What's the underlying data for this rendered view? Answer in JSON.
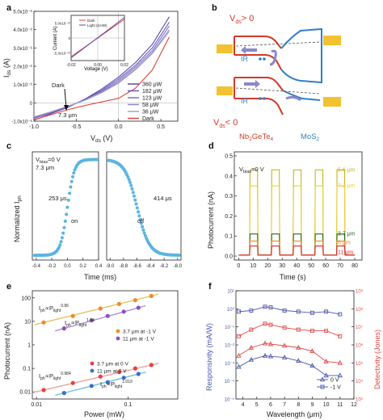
{
  "panels": {
    "a": {
      "label": "a"
    },
    "b": {
      "label": "b"
    },
    "c": {
      "label": "c"
    },
    "d": {
      "label": "d"
    },
    "e": {
      "label": "e"
    },
    "f": {
      "label": "f"
    }
  },
  "schematic": {
    "vds_pos": "V",
    "vds_pos_sub": "ds",
    "vds_pos_rel": "> 0",
    "vds_neg": "V",
    "vds_neg_sub": "ds",
    "vds_neg_rel": "< 0",
    "ir_top": "IR",
    "ir_bottom": "IR",
    "nb_label": "Nb",
    "nb_sub1": "2",
    "nb_mid": "GeTe",
    "nb_sub2": "4",
    "mos_label": "MoS",
    "mos_sub": "2",
    "colors": {
      "red": "#d23a2a",
      "blue": "#2f7fc4",
      "gold": "#f2c230",
      "arrow": "#8a88cc"
    }
  },
  "chart_data": [
    {
      "panel": "a",
      "type": "line",
      "xlabel": "V",
      "xlabel_sub": "ds",
      "xlabel_unit": " (V)",
      "ylabel": "I",
      "ylabel_sub": "ds",
      "ylabel_unit": " (A)",
      "xlim": [
        -1.0,
        0.7
      ],
      "ylim": [
        -1e-06,
        5e-06
      ],
      "xticks": [
        -1.0,
        -0.5,
        0.0,
        0.5
      ],
      "xtick_labels": [
        "-1.0",
        "-0.5",
        "0.0",
        "0.5"
      ],
      "yticks": [
        -1e-06,
        0,
        1e-06,
        2e-06,
        3e-06,
        4e-06,
        5e-06
      ],
      "ytick_labels": [
        "-1.0x10⁻⁶",
        "0",
        "1.0x10⁻⁶",
        "2.0x10⁻⁶",
        "3.0x10⁻⁶",
        "4.0x10⁻⁶",
        "5.0x10⁻⁶"
      ],
      "legend": [
        "360 μW",
        "182 μW",
        "123 μW",
        "58 μW",
        "36 μW",
        "Dark"
      ],
      "legend_colors": [
        "#5c4aa8",
        "#6a5bb5",
        "#7c70c0",
        "#9088c8",
        "#a89ed0",
        "#e0443a"
      ],
      "arrow_label": "Dark",
      "thickness_label": "7.3 μm",
      "series": [
        {
          "name": "360 μW",
          "x": [
            -1.0,
            -0.8,
            -0.6,
            -0.4,
            -0.2,
            0.0,
            0.2,
            0.4,
            0.6
          ],
          "y": [
            -9.5e-07,
            -6e-07,
            -2.5e-07,
            2e-07,
            7.5e-07,
            1.4e-06,
            2.2e-06,
            3.2e-06,
            4.7e-06
          ]
        },
        {
          "name": "182 μW",
          "x": [
            -1.0,
            -0.8,
            -0.6,
            -0.4,
            -0.2,
            0.0,
            0.2,
            0.4,
            0.6
          ],
          "y": [
            -8.5e-07,
            -5.5e-07,
            -2.2e-07,
            1.8e-07,
            6.8e-07,
            1.3e-06,
            2.05e-06,
            3e-06,
            4.4e-06
          ]
        },
        {
          "name": "123 μW",
          "x": [
            -1.0,
            -0.8,
            -0.6,
            -0.4,
            -0.2,
            0.0,
            0.2,
            0.4,
            0.6
          ],
          "y": [
            -8e-07,
            -5.2e-07,
            -2e-07,
            1.6e-07,
            6.2e-07,
            1.2e-06,
            1.95e-06,
            2.85e-06,
            4.2e-06
          ]
        },
        {
          "name": "58 μW",
          "x": [
            -1.0,
            -0.8,
            -0.6,
            -0.4,
            -0.2,
            0.0,
            0.2,
            0.4,
            0.6
          ],
          "y": [
            -7.8e-07,
            -5e-07,
            -1.9e-07,
            1.4e-07,
            5.8e-07,
            1.12e-06,
            1.85e-06,
            2.75e-06,
            4e-06
          ]
        },
        {
          "name": "36 μW",
          "x": [
            -1.0,
            -0.8,
            -0.6,
            -0.4,
            -0.2,
            0.0,
            0.2,
            0.4,
            0.6
          ],
          "y": [
            -7.6e-07,
            -4.9e-07,
            -1.8e-07,
            1.3e-07,
            5.5e-07,
            1.08e-06,
            1.8e-06,
            2.7e-06,
            3.9e-06
          ]
        },
        {
          "name": "Dark",
          "x": [
            -1.0,
            -0.8,
            -0.6,
            -0.4,
            -0.2,
            0.0,
            0.2,
            0.4,
            0.6
          ],
          "y": [
            -9.2e-07,
            -6.5e-07,
            -3.8e-07,
            -1.5e-07,
            5e-08,
            2.5e-07,
            8e-07,
            1.8e-06,
            3.6e-06
          ]
        }
      ],
      "inset": {
        "xlabel": "Voltage (V)",
        "ylabel": "Current (A)",
        "xlim": [
          -0.02,
          0.02
        ],
        "ylim": [
          -7.5e-10,
          7.5e-10
        ],
        "xtick_labels": [
          "-0.02",
          "0.00",
          "0.02"
        ],
        "ytick_labels": [
          "5.0x10⁻¹⁰",
          "0",
          "-5.0x10⁻¹⁰"
        ],
        "legend": [
          "Dark",
          "Light (1mW)"
        ],
        "legend_colors": [
          "#e0443a",
          "#5c4aa8"
        ],
        "series": [
          {
            "name": "Dark",
            "x": [
              -0.02,
              0.02
            ],
            "y": [
              -6.2e-10,
              6.2e-10
            ]
          },
          {
            "name": "Light (1mW)",
            "x": [
              -0.02,
              0.02
            ],
            "y": [
              -6.6e-10,
              6.8e-10
            ]
          }
        ]
      }
    },
    {
      "panel": "c",
      "type": "scatter",
      "ylabel": "Normalized I",
      "ylabel_sub": "ph",
      "xlabel": "Time (ms)",
      "bias_label": "V",
      "bias_sub": "bias",
      "bias_value": "=0 V",
      "thickness_label": "7.3 μm",
      "rise_label": "253 μs",
      "rise_word": "on",
      "fall_label": "414 μs",
      "fall_word": "off",
      "left_xticks": [
        "-0.4",
        "-0.2",
        "0.0",
        "0.2",
        "0.4"
      ],
      "right_xticks": [
        "-9.0",
        "-8.8",
        "-8.6",
        "-8.4",
        "-8.2",
        "-8.0"
      ],
      "rise": {
        "xlim": [
          -0.45,
          0.4
        ],
        "t0": 0.0,
        "tau_ms": 0.1,
        "x_start": -0.42,
        "x_end": 0.38,
        "n": 60
      },
      "fall": {
        "xlim": [
          -9.05,
          -7.95
        ],
        "t0": -8.85,
        "tau_ms": 0.18,
        "x_start": -9.02,
        "x_end": -7.98,
        "n": 70
      },
      "color": "#5bb4e0"
    },
    {
      "panel": "d",
      "type": "line",
      "xlabel": "Time (s)",
      "ylabel": "Photocurrent (nA)",
      "bias_label": "V",
      "bias_sub": "bias",
      "bias_value": "=0 V",
      "xlim": [
        -3,
        85
      ],
      "ylim": [
        -0.02,
        0.52
      ],
      "xticks": [
        0,
        10,
        20,
        30,
        40,
        50,
        60,
        70,
        80
      ],
      "yticks": [
        0.0,
        0.1,
        0.2,
        0.3,
        0.4,
        0.5
      ],
      "ytick_labels": [
        "0.0",
        "0.1",
        "0.2",
        "0.3",
        "0.4",
        "0.5"
      ],
      "pulses_on": [
        7.5,
        22.5,
        37.5,
        52.5,
        67.5
      ],
      "pulse_width": 5.5,
      "series": [
        {
          "name": "5.6 μm",
          "level": 0.43,
          "color": "#c9b41a"
        },
        {
          "name": "7.3 μm",
          "level": 0.35,
          "color": "#e8d040"
        },
        {
          "name": "3.7 μm",
          "level": 0.11,
          "color": "#2a6a22"
        },
        {
          "name": "8 μm",
          "level": 0.075,
          "color": "#e88a2a"
        },
        {
          "name": "11 μm",
          "level": 0.05,
          "color": "#d83030"
        }
      ],
      "labels": [
        "5.6 μm",
        "7.3 μm",
        "3.7 μm",
        "8 μm",
        "11 μm"
      ]
    },
    {
      "panel": "e",
      "type": "scatter",
      "xlabel": "Power (mW)",
      "ylabel": "Photocurrent (nA)",
      "xscale": "log",
      "yscale": "log",
      "xlim": [
        0.009,
        0.35
      ],
      "ylim": [
        0.005,
        200
      ],
      "xticks": [
        0.01,
        0.1
      ],
      "xtick_labels": [
        "0.01",
        "0.1"
      ],
      "yticks": [
        0.01,
        0.1,
        1,
        10,
        100
      ],
      "ytick_labels": [
        "0.01",
        "0.1",
        "1",
        "10",
        "100"
      ],
      "legend_top": [
        "3.7  μm at -1 V",
        "11  μm at -1 V"
      ],
      "legend_bottom": [
        "3.7  μm at 0 V",
        "11  μm at 0 V"
      ],
      "fit_labels": [
        {
          "base": "I",
          "sub": "ph",
          "mid": "∝P",
          "sub2": "light",
          "exp": "0.96"
        },
        {
          "base": "I",
          "sub": "ph",
          "mid": "∝P",
          "sub2": "light",
          "exp": "1.04"
        },
        {
          "base": "I",
          "sub": "ph",
          "mid": "∝P",
          "sub2": "light",
          "exp": "0.984"
        },
        {
          "base": "I",
          "sub": "ph",
          "mid": "∝P",
          "sub2": "light",
          "exp": "1.019"
        }
      ],
      "series": [
        {
          "name": "3.7 μm at -1 V",
          "color": "#f08a2a",
          "fit": "#e8c060",
          "x": [
            0.012,
            0.025,
            0.05,
            0.08,
            0.12,
            0.18
          ],
          "y": [
            9,
            17,
            35,
            55,
            80,
            120
          ]
        },
        {
          "name": "11 μm at -1 V",
          "color": "#8a50c0",
          "fit": "#b090d8",
          "x": [
            0.02,
            0.04,
            0.06,
            0.09,
            0.13
          ],
          "y": [
            5,
            11,
            17,
            26,
            38
          ]
        },
        {
          "name": "3.7 μm at 0 V",
          "color": "#e84040",
          "fit": "#f0a0a0",
          "x": [
            0.012,
            0.025,
            0.05,
            0.08,
            0.12,
            0.18
          ],
          "y": [
            0.012,
            0.024,
            0.045,
            0.07,
            0.1,
            0.14
          ]
        },
        {
          "name": "11 μm at 0 V",
          "color": "#3a70c8",
          "fit": "#70c0e0",
          "x": [
            0.02,
            0.04,
            0.06,
            0.09,
            0.13
          ],
          "y": [
            0.009,
            0.018,
            0.026,
            0.04,
            0.058
          ]
        }
      ]
    },
    {
      "panel": "f",
      "type": "line",
      "xlabel": "Wavelength (μm)",
      "ylabel_left": "Responsivity (mA/W)",
      "ylabel_right": "Detectivity (Jones)",
      "yscale": "log",
      "xlim": [
        3.5,
        12
      ],
      "xticks": [
        4,
        5,
        6,
        7,
        8,
        9,
        10,
        11,
        12
      ],
      "ylim_left_exp": [
        -5,
        1
      ],
      "ylim_right_exp": [
        3,
        9
      ],
      "left_ytick_labels": [
        "10⁻⁵",
        "10⁻⁴",
        "10⁻³",
        "10⁻²",
        "10⁻¹",
        "10⁰",
        "10¹"
      ],
      "right_ytick_labels": [
        "10³",
        "10⁴",
        "10⁵",
        "10⁶",
        "10⁷",
        "10⁸",
        "10⁹"
      ],
      "legend": [
        "0 V",
        "-1 V"
      ],
      "x": [
        3.7,
        4.6,
        5.6,
        6.0,
        7.0,
        8.0,
        9.0,
        10.0,
        11.0
      ],
      "series": [
        {
          "name": "0 V",
          "axis": "left",
          "marker": "triangle-up",
          "color": "#4a56a8",
          "y": [
            0.0006,
            0.0015,
            0.0025,
            0.0023,
            0.002,
            0.0013,
            0.0007,
            0.0002,
            0.0002
          ]
        },
        {
          "name": "-1 V",
          "axis": "left",
          "marker": "square",
          "color": "#4a56a8",
          "y": [
            0.7,
            0.8,
            1.3,
            1.2,
            0.8,
            0.7,
            0.6,
            0.7,
            0.5
          ]
        },
        {
          "name": "0 V D*",
          "axis": "right",
          "marker": "triangle-up",
          "color": "#e04848",
          "y": [
            250000,
            700000,
            1200000,
            1100000,
            900000,
            700000,
            450000,
            120000,
            100000
          ]
        },
        {
          "name": "-1 V D*",
          "axis": "right",
          "marker": "square",
          "color": "#e04848",
          "y": [
            3000000,
            7000000,
            15000000,
            13000000,
            9000000,
            7000000,
            6000000,
            6000000,
            3000000
          ]
        }
      ]
    }
  ]
}
